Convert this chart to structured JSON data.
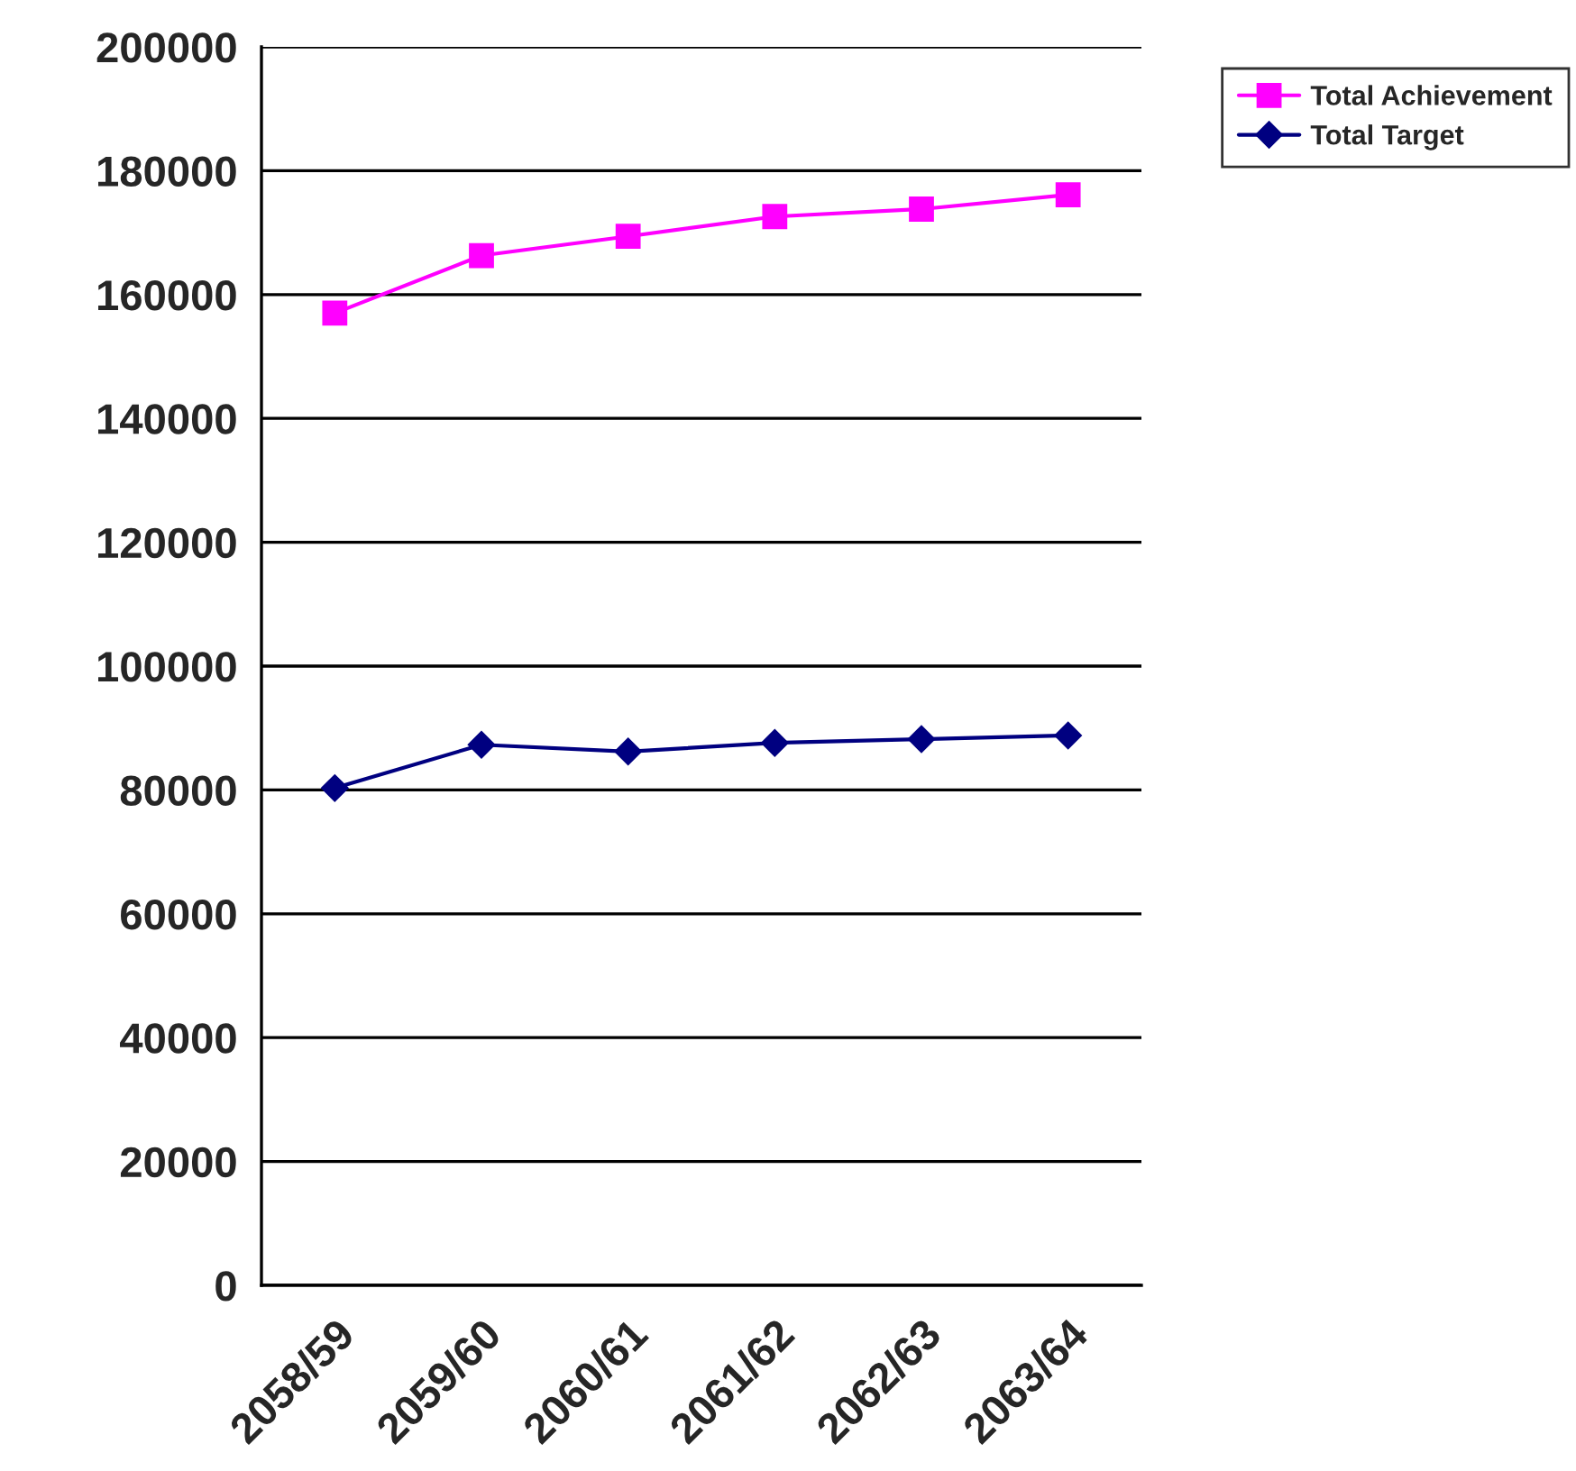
{
  "chart_data": {
    "type": "line",
    "categories": [
      "2058/59",
      "2059/60",
      "2060/61",
      "2061/62",
      "2062/63",
      "2063/64"
    ],
    "series": [
      {
        "name": "Total Achievement",
        "color": "#ff00ff",
        "marker": "square",
        "values": [
          157000,
          166300,
          169400,
          172600,
          173800,
          176100
        ]
      },
      {
        "name": "Total Target",
        "color": "#000080",
        "marker": "diamond",
        "values": [
          80300,
          87300,
          86200,
          87600,
          88200,
          88800
        ]
      }
    ],
    "ylim": [
      0,
      200000
    ],
    "yticks": [
      0,
      20000,
      40000,
      60000,
      80000,
      100000,
      120000,
      140000,
      160000,
      180000,
      200000
    ],
    "grid": "y",
    "legend": "top right",
    "line_style": "solid"
  }
}
